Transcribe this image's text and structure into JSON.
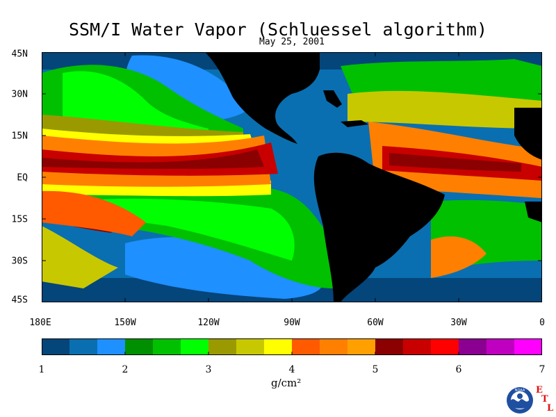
{
  "title": "SSM/I Water Vapor (Schluessel algorithm)",
  "subtitle": "May 25, 2001",
  "lat_labels": [
    "45N",
    "30N",
    "15N",
    "EQ",
    "15S",
    "30S",
    "45S"
  ],
  "lon_labels": [
    "180E",
    "150W",
    "120W",
    "90W",
    "60W",
    "30W",
    "0"
  ],
  "colorbar": {
    "ticks": [
      "1",
      "2",
      "3",
      "4",
      "5",
      "6",
      "7"
    ],
    "units": "g/cm²",
    "colors": [
      "#04457a",
      "#0a6fb0",
      "#1e90ff",
      "#008f00",
      "#00c000",
      "#00ff00",
      "#9a9a00",
      "#c8c800",
      "#ffff00",
      "#ff5a00",
      "#ff8000",
      "#ffa000",
      "#8b0000",
      "#c80000",
      "#ff0000",
      "#8b0090",
      "#c000c0",
      "#ff00ff"
    ]
  },
  "map": {
    "land_color": "#000000",
    "ocean_base_color": "#0a6fb0"
  },
  "logo": {
    "letters": [
      "E",
      "T",
      "L"
    ],
    "badge_text": "NOAA"
  }
}
